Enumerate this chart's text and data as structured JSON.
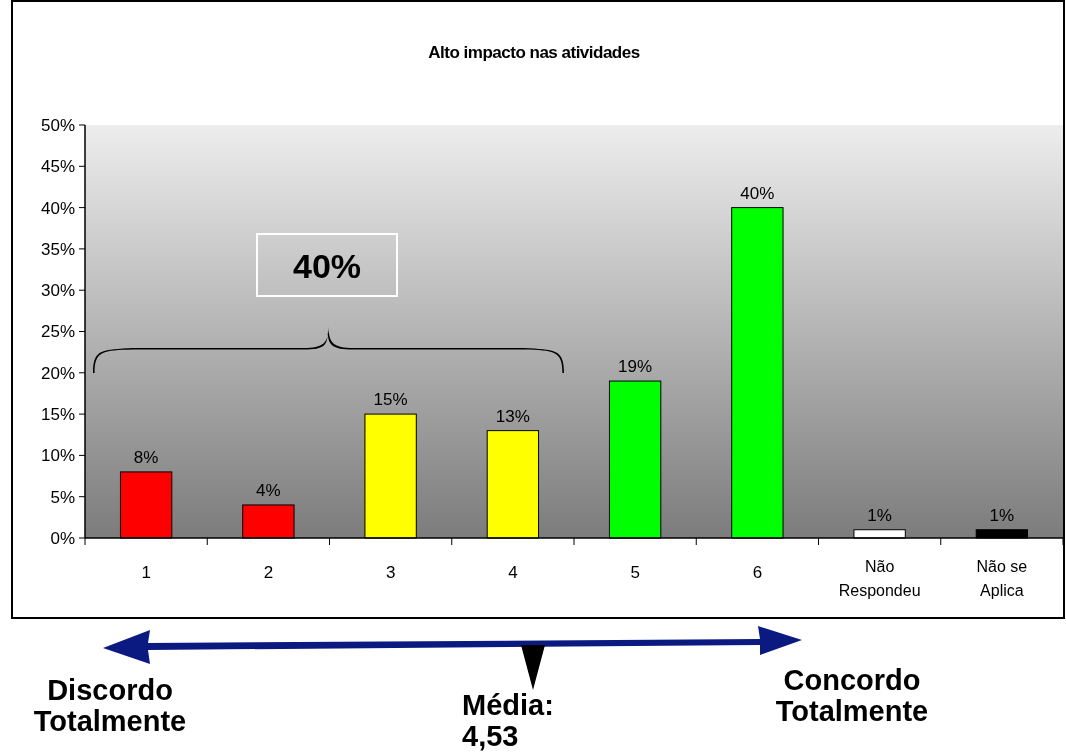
{
  "chart_data": {
    "type": "bar",
    "title": "Alto impacto nas atividades",
    "categories": [
      "1",
      "2",
      "3",
      "4",
      "5",
      "6",
      "Não Respondeu",
      "Não se Aplica"
    ],
    "values": [
      8,
      4,
      15,
      13,
      19,
      40,
      1,
      1
    ],
    "colors": [
      "#ff0000",
      "#ff0000",
      "#ffff00",
      "#ffff00",
      "#00ff00",
      "#00ff00",
      "#ffffff",
      "#000000"
    ],
    "value_labels": [
      "8%",
      "4%",
      "15%",
      "13%",
      "19%",
      "40%",
      "1%",
      "1%"
    ],
    "ylim": [
      0,
      50
    ],
    "yticks": [
      {
        "value": 0,
        "label": "0%"
      },
      {
        "value": 5,
        "label": "5%"
      },
      {
        "value": 10,
        "label": "10%"
      },
      {
        "value": 15,
        "label": "15%"
      },
      {
        "value": 20,
        "label": "20%"
      },
      {
        "value": 25,
        "label": "25%"
      },
      {
        "value": 30,
        "label": "30%"
      },
      {
        "value": 35,
        "label": "35%"
      },
      {
        "value": 40,
        "label": "40%"
      },
      {
        "value": 45,
        "label": "45%"
      },
      {
        "value": 50,
        "label": "50%"
      }
    ],
    "grid": false,
    "annotations": [
      "40%",
      "Discordo Totalmente",
      "Média: 4,53",
      "Concordo Totalmente"
    ]
  }
}
